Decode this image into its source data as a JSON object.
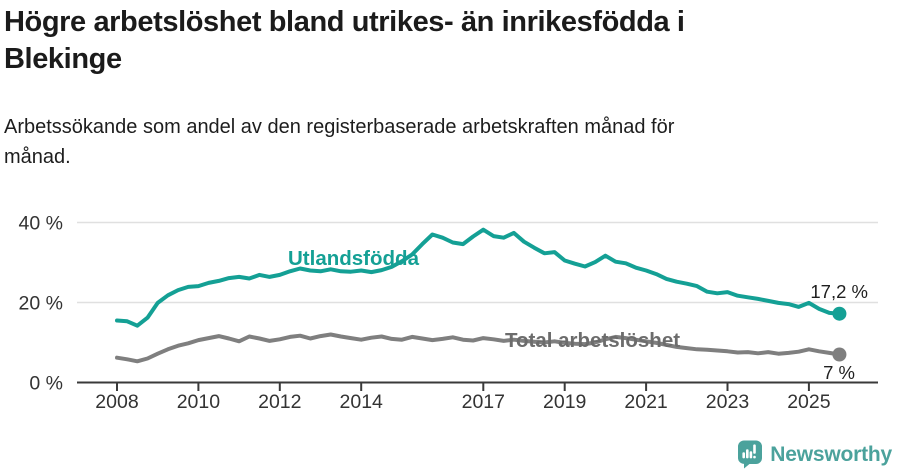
{
  "header": {
    "title_lines": [
      "Högre arbetslöshet bland utrikes- än inrikesfödda i",
      "Blekinge"
    ],
    "subtitle_lines": [
      "Arbetssökande som andel av den registerbaserade arbetskraften månad för",
      "månad."
    ]
  },
  "chart_data": {
    "type": "line",
    "title": "Högre arbetslöshet bland utrikes- än inrikesfödda i Blekinge",
    "subtitle": "Arbetssökande som andel av den registerbaserade arbetskraften månad för månad.",
    "xlabel": "",
    "ylabel": "",
    "xlim": [
      2008,
      2025.75
    ],
    "ylim": [
      0,
      42
    ],
    "grid": "horizontal",
    "legend_position": "inline-labels",
    "yticks": [
      {
        "value": 0,
        "label": "0 %"
      },
      {
        "value": 20,
        "label": "20 %"
      },
      {
        "value": 40,
        "label": "40 %"
      }
    ],
    "xticks": [
      {
        "value": 2008,
        "label": "2008"
      },
      {
        "value": 2010,
        "label": "2010"
      },
      {
        "value": 2012,
        "label": "2012"
      },
      {
        "value": 2014,
        "label": "2014"
      },
      {
        "value": 2017,
        "label": "2017"
      },
      {
        "value": 2019,
        "label": "2019"
      },
      {
        "value": 2021,
        "label": "2021"
      },
      {
        "value": 2023,
        "label": "2023"
      },
      {
        "value": 2025,
        "label": "2025"
      }
    ],
    "x": [
      2008.0,
      2008.25,
      2008.5,
      2008.75,
      2009.0,
      2009.25,
      2009.5,
      2009.75,
      2010.0,
      2010.25,
      2010.5,
      2010.75,
      2011.0,
      2011.25,
      2011.5,
      2011.75,
      2012.0,
      2012.25,
      2012.5,
      2012.75,
      2013.0,
      2013.25,
      2013.5,
      2013.75,
      2014.0,
      2014.25,
      2014.5,
      2014.75,
      2015.0,
      2015.25,
      2015.5,
      2015.75,
      2016.0,
      2016.25,
      2016.5,
      2016.75,
      2017.0,
      2017.25,
      2017.5,
      2017.75,
      2018.0,
      2018.25,
      2018.5,
      2018.75,
      2019.0,
      2019.25,
      2019.5,
      2019.75,
      2020.0,
      2020.25,
      2020.5,
      2020.75,
      2021.0,
      2021.25,
      2021.5,
      2021.75,
      2022.0,
      2022.25,
      2022.5,
      2022.75,
      2023.0,
      2023.25,
      2023.5,
      2023.75,
      2024.0,
      2024.25,
      2024.5,
      2024.75,
      2025.0,
      2025.25,
      2025.5,
      2025.75
    ],
    "series": [
      {
        "name": "Utlandsfödda",
        "color": "#14a095",
        "label_color": "#14a095",
        "end_label": "17,2 %",
        "end_value": 17.2,
        "values": [
          15.5,
          15.3,
          14.2,
          16.2,
          19.9,
          21.8,
          23.1,
          23.9,
          24.1,
          24.9,
          25.4,
          26.1,
          26.4,
          26.0,
          26.9,
          26.4,
          26.9,
          27.8,
          28.5,
          28.0,
          27.8,
          28.3,
          27.8,
          27.7,
          28.0,
          27.6,
          28.1,
          28.9,
          30.3,
          32.0,
          34.6,
          37.0,
          36.2,
          35.0,
          34.6,
          36.5,
          38.2,
          36.6,
          36.2,
          37.4,
          35.2,
          33.7,
          32.3,
          32.6,
          30.5,
          29.7,
          29.0,
          30.1,
          31.7,
          30.2,
          29.8,
          28.7,
          28.0,
          27.1,
          25.9,
          25.2,
          24.7,
          24.1,
          22.7,
          22.3,
          22.6,
          21.7,
          21.3,
          20.9,
          20.4,
          19.9,
          19.6,
          18.9,
          19.9,
          18.4,
          17.4,
          17.2
        ]
      },
      {
        "name": "Total arbetslöshet",
        "color": "#7f7f7f",
        "label_color": "#6c6c6c",
        "end_label": "7 %",
        "end_value": 7,
        "values": [
          6.2,
          5.8,
          5.3,
          6.0,
          7.2,
          8.3,
          9.2,
          9.8,
          10.6,
          11.1,
          11.6,
          11.0,
          10.3,
          11.5,
          11.0,
          10.4,
          10.8,
          11.4,
          11.7,
          11.0,
          11.6,
          12.0,
          11.5,
          11.1,
          10.7,
          11.2,
          11.5,
          10.9,
          10.7,
          11.4,
          11.0,
          10.6,
          10.9,
          11.3,
          10.7,
          10.5,
          11.1,
          10.8,
          10.4,
          10.7,
          10.4,
          10.2,
          10.0,
          10.3,
          9.9,
          9.7,
          9.6,
          10.0,
          10.8,
          11.4,
          11.1,
          10.7,
          10.3,
          9.9,
          9.4,
          8.9,
          8.6,
          8.3,
          8.2,
          8.0,
          7.8,
          7.5,
          7.6,
          7.3,
          7.6,
          7.2,
          7.4,
          7.7,
          8.3,
          7.8,
          7.4,
          7.0
        ]
      }
    ]
  },
  "footer": {
    "brand": "Newsworthy",
    "brand_color": "#4ba29c",
    "logo_icon": "newsworthy-chart-bubble-icon"
  }
}
